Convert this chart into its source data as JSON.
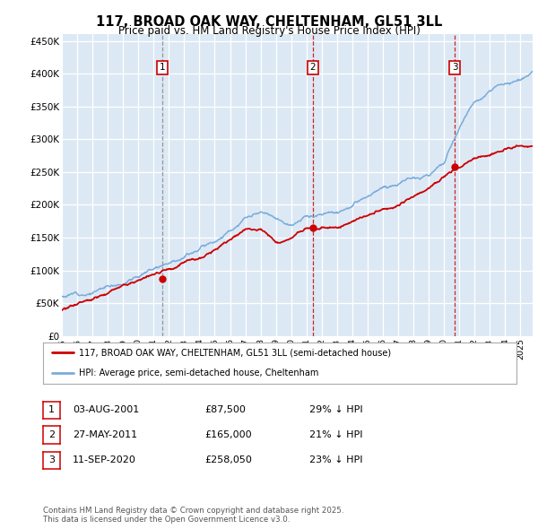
{
  "title": "117, BROAD OAK WAY, CHELTENHAM, GL51 3LL",
  "subtitle": "Price paid vs. HM Land Registry's House Price Index (HPI)",
  "ylim": [
    0,
    460000
  ],
  "yticks": [
    0,
    50000,
    100000,
    150000,
    200000,
    250000,
    300000,
    350000,
    400000,
    450000
  ],
  "ytick_labels": [
    "£0",
    "£50K",
    "£100K",
    "£150K",
    "£200K",
    "£250K",
    "£300K",
    "£350K",
    "£400K",
    "£450K"
  ],
  "xlim_start": 1995.0,
  "xlim_end": 2025.8,
  "plot_bg_color": "#dce9f5",
  "red_line_color": "#cc0000",
  "blue_line_color": "#7aabdb",
  "sale1_x": 2001.59,
  "sale1_y": 87500,
  "sale1_label": "1",
  "sale1_vline_color": "#888888",
  "sale1_vline_style": "--",
  "sale2_x": 2011.41,
  "sale2_y": 165000,
  "sale2_label": "2",
  "sale2_vline_color": "#cc0000",
  "sale2_vline_style": "--",
  "sale3_x": 2020.7,
  "sale3_y": 258050,
  "sale3_label": "3",
  "sale3_vline_color": "#cc0000",
  "sale3_vline_style": "--",
  "legend_red": "117, BROAD OAK WAY, CHELTENHAM, GL51 3LL (semi-detached house)",
  "legend_blue": "HPI: Average price, semi-detached house, Cheltenham",
  "table_data": [
    {
      "num": "1",
      "date": "03-AUG-2001",
      "price": "£87,500",
      "hpi": "29% ↓ HPI"
    },
    {
      "num": "2",
      "date": "27-MAY-2011",
      "price": "£165,000",
      "hpi": "21% ↓ HPI"
    },
    {
      "num": "3",
      "date": "11-SEP-2020",
      "price": "£258,050",
      "hpi": "23% ↓ HPI"
    }
  ],
  "footer": "Contains HM Land Registry data © Crown copyright and database right 2025.\nThis data is licensed under the Open Government Licence v3.0."
}
